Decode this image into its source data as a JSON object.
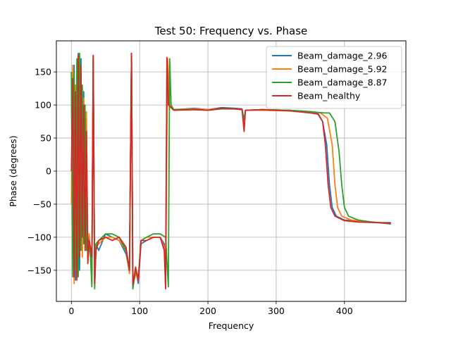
{
  "chart_data": {
    "type": "line",
    "title": "Test 50: Frequency vs. Phase",
    "xlabel": "Frequency",
    "ylabel": "Phase (degrees)",
    "xlim": [
      -22,
      490
    ],
    "ylim": [
      -197,
      197
    ],
    "xticks": [
      0,
      100,
      200,
      300,
      400
    ],
    "yticks": [
      -150,
      -100,
      -50,
      0,
      50,
      100,
      150
    ],
    "grid": true,
    "legend_position": "upper right",
    "series": [
      {
        "name": "Beam_damage_2.96",
        "color": "#1f77b4",
        "points": [
          [
            0,
            140
          ],
          [
            2,
            -150
          ],
          [
            4,
            160
          ],
          [
            6,
            -165
          ],
          [
            8,
            100
          ],
          [
            10,
            178
          ],
          [
            12,
            -150
          ],
          [
            14,
            170
          ],
          [
            16,
            -120
          ],
          [
            18,
            120
          ],
          [
            20,
            -110
          ],
          [
            22,
            80
          ],
          [
            24,
            -130
          ],
          [
            26,
            -100
          ],
          [
            28,
            -120
          ],
          [
            30,
            -140
          ],
          [
            32,
            170
          ],
          [
            34,
            -170
          ],
          [
            36,
            -110
          ],
          [
            40,
            -120
          ],
          [
            50,
            -95
          ],
          [
            60,
            -100
          ],
          [
            70,
            -105
          ],
          [
            80,
            -125
          ],
          [
            85,
            -150
          ],
          [
            88,
            178
          ],
          [
            90,
            -170
          ],
          [
            94,
            -150
          ],
          [
            98,
            -170
          ],
          [
            102,
            -110
          ],
          [
            110,
            -105
          ],
          [
            120,
            -100
          ],
          [
            130,
            -100
          ],
          [
            136,
            -110
          ],
          [
            138,
            -175
          ],
          [
            140,
            170
          ],
          [
            143,
            100
          ],
          [
            150,
            93
          ],
          [
            180,
            95
          ],
          [
            200,
            93
          ],
          [
            220,
            96
          ],
          [
            240,
            95
          ],
          [
            250,
            94
          ],
          [
            253,
            75
          ],
          [
            255,
            92
          ],
          [
            280,
            93
          ],
          [
            320,
            92
          ],
          [
            350,
            90
          ],
          [
            360,
            88
          ],
          [
            368,
            75
          ],
          [
            374,
            40
          ],
          [
            378,
            -20
          ],
          [
            382,
            -55
          ],
          [
            388,
            -68
          ],
          [
            400,
            -74
          ],
          [
            420,
            -76
          ],
          [
            450,
            -78
          ],
          [
            468,
            -78
          ]
        ]
      },
      {
        "name": "Beam_damage_5.92",
        "color": "#ff7f0e",
        "points": [
          [
            0,
            -50
          ],
          [
            2,
            160
          ],
          [
            4,
            -170
          ],
          [
            6,
            130
          ],
          [
            8,
            -140
          ],
          [
            10,
            175
          ],
          [
            12,
            -110
          ],
          [
            14,
            150
          ],
          [
            16,
            -130
          ],
          [
            18,
            110
          ],
          [
            20,
            -110
          ],
          [
            22,
            90
          ],
          [
            24,
            -125
          ],
          [
            26,
            -95
          ],
          [
            28,
            -130
          ],
          [
            30,
            -150
          ],
          [
            32,
            175
          ],
          [
            34,
            -175
          ],
          [
            36,
            -115
          ],
          [
            40,
            -110
          ],
          [
            50,
            -100
          ],
          [
            60,
            -100
          ],
          [
            70,
            -105
          ],
          [
            80,
            -120
          ],
          [
            85,
            -155
          ],
          [
            88,
            178
          ],
          [
            90,
            -175
          ],
          [
            94,
            -155
          ],
          [
            98,
            -165
          ],
          [
            102,
            -105
          ],
          [
            110,
            -100
          ],
          [
            120,
            -100
          ],
          [
            130,
            -100
          ],
          [
            136,
            -115
          ],
          [
            138,
            -175
          ],
          [
            141,
            170
          ],
          [
            144,
            100
          ],
          [
            150,
            93
          ],
          [
            180,
            94
          ],
          [
            200,
            93
          ],
          [
            220,
            95
          ],
          [
            240,
            94
          ],
          [
            250,
            93
          ],
          [
            253,
            75
          ],
          [
            255,
            92
          ],
          [
            280,
            92
          ],
          [
            320,
            91
          ],
          [
            350,
            90
          ],
          [
            365,
            88
          ],
          [
            375,
            80
          ],
          [
            382,
            40
          ],
          [
            386,
            -20
          ],
          [
            390,
            -55
          ],
          [
            396,
            -68
          ],
          [
            410,
            -74
          ],
          [
            430,
            -76
          ],
          [
            450,
            -78
          ],
          [
            468,
            -79
          ]
        ]
      },
      {
        "name": "Beam_damage_8.87",
        "color": "#2ca02c",
        "points": [
          [
            0,
            150
          ],
          [
            2,
            -160
          ],
          [
            4,
            150
          ],
          [
            6,
            -150
          ],
          [
            8,
            170
          ],
          [
            10,
            -160
          ],
          [
            12,
            178
          ],
          [
            14,
            -120
          ],
          [
            16,
            130
          ],
          [
            18,
            -110
          ],
          [
            20,
            100
          ],
          [
            22,
            -120
          ],
          [
            24,
            -100
          ],
          [
            26,
            -110
          ],
          [
            28,
            -130
          ],
          [
            30,
            -175
          ],
          [
            32,
            175
          ],
          [
            34,
            -178
          ],
          [
            36,
            -110
          ],
          [
            40,
            -105
          ],
          [
            50,
            -95
          ],
          [
            60,
            -95
          ],
          [
            70,
            -100
          ],
          [
            80,
            -120
          ],
          [
            85,
            -150
          ],
          [
            88,
            178
          ],
          [
            90,
            -178
          ],
          [
            94,
            -150
          ],
          [
            98,
            -160
          ],
          [
            102,
            -105
          ],
          [
            110,
            -100
          ],
          [
            120,
            -95
          ],
          [
            130,
            -95
          ],
          [
            138,
            -100
          ],
          [
            142,
            -175
          ],
          [
            144,
            170
          ],
          [
            146,
            100
          ],
          [
            150,
            93
          ],
          [
            180,
            93
          ],
          [
            200,
            92
          ],
          [
            220,
            94
          ],
          [
            240,
            94
          ],
          [
            250,
            93
          ],
          [
            253,
            78
          ],
          [
            255,
            92
          ],
          [
            280,
            93
          ],
          [
            320,
            92
          ],
          [
            350,
            90
          ],
          [
            370,
            88
          ],
          [
            378,
            88
          ],
          [
            386,
            75
          ],
          [
            392,
            30
          ],
          [
            396,
            -20
          ],
          [
            400,
            -55
          ],
          [
            406,
            -68
          ],
          [
            420,
            -74
          ],
          [
            440,
            -77
          ],
          [
            460,
            -79
          ],
          [
            468,
            -80
          ]
        ]
      },
      {
        "name": "Beam_healthy",
        "color": "#d62728",
        "points": [
          [
            0,
            0
          ],
          [
            2,
            140
          ],
          [
            4,
            -160
          ],
          [
            6,
            120
          ],
          [
            8,
            -165
          ],
          [
            10,
            175
          ],
          [
            12,
            -130
          ],
          [
            14,
            160
          ],
          [
            16,
            -100
          ],
          [
            18,
            100
          ],
          [
            20,
            -120
          ],
          [
            22,
            60
          ],
          [
            24,
            -140
          ],
          [
            26,
            -105
          ],
          [
            28,
            -115
          ],
          [
            30,
            -130
          ],
          [
            32,
            175
          ],
          [
            34,
            -170
          ],
          [
            36,
            -120
          ],
          [
            40,
            -105
          ],
          [
            50,
            -100
          ],
          [
            60,
            -105
          ],
          [
            70,
            -100
          ],
          [
            80,
            -115
          ],
          [
            85,
            -150
          ],
          [
            88,
            178
          ],
          [
            90,
            -172
          ],
          [
            94,
            -145
          ],
          [
            98,
            -165
          ],
          [
            102,
            -105
          ],
          [
            110,
            -105
          ],
          [
            120,
            -100
          ],
          [
            130,
            -100
          ],
          [
            136,
            -120
          ],
          [
            138,
            -178
          ],
          [
            140,
            172
          ],
          [
            142,
            100
          ],
          [
            150,
            92
          ],
          [
            180,
            93
          ],
          [
            200,
            92
          ],
          [
            220,
            95
          ],
          [
            240,
            94
          ],
          [
            250,
            93
          ],
          [
            253,
            60
          ],
          [
            255,
            92
          ],
          [
            280,
            93
          ],
          [
            320,
            91
          ],
          [
            350,
            88
          ],
          [
            362,
            86
          ],
          [
            368,
            75
          ],
          [
            372,
            40
          ],
          [
            376,
            -20
          ],
          [
            380,
            -55
          ],
          [
            386,
            -68
          ],
          [
            400,
            -75
          ],
          [
            420,
            -77
          ],
          [
            450,
            -78
          ],
          [
            468,
            -79
          ]
        ]
      }
    ]
  }
}
